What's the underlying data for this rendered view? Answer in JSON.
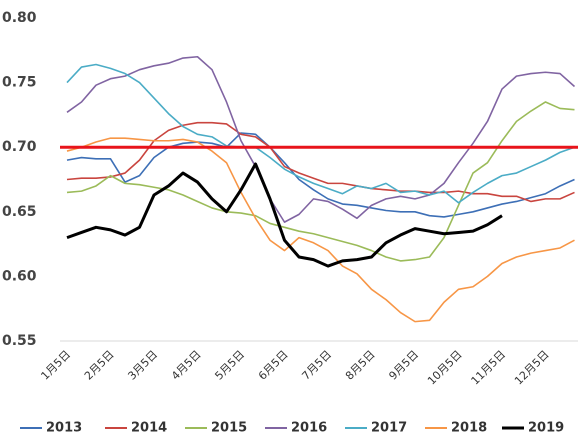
{
  "chart_data": {
    "type": "line",
    "categories": [
      "1月5日",
      null,
      null,
      "2月5日",
      null,
      null,
      "3月5日",
      null,
      null,
      "4月5日",
      null,
      null,
      "5月5日",
      null,
      null,
      "6月5日",
      null,
      null,
      "7月5日",
      null,
      null,
      "8月5日",
      null,
      null,
      "9月5日",
      null,
      null,
      "10月5日",
      null,
      null,
      "11月5日",
      null,
      null,
      "12月5日",
      null,
      null
    ],
    "ylim": [
      0.55,
      0.8
    ],
    "yticks": [
      {
        "value": 0.55,
        "label": "0.55"
      },
      {
        "value": 0.6,
        "label": "0.60"
      },
      {
        "value": 0.65,
        "label": "0.65"
      },
      {
        "value": 0.7,
        "label": "0.70"
      },
      {
        "value": 0.75,
        "label": "0.75"
      },
      {
        "value": 0.8,
        "label": "0.80"
      }
    ],
    "hline": {
      "value": 0.7,
      "color": "#e8141b"
    },
    "legend": "bottom",
    "series": [
      {
        "name": "2013",
        "color": "#3d6fb6",
        "values": [
          0.69,
          0.692,
          0.691,
          0.691,
          0.673,
          0.678,
          0.692,
          0.7,
          0.703,
          0.704,
          0.703,
          0.7,
          0.711,
          0.71,
          0.7,
          0.688,
          0.675,
          0.667,
          0.66,
          0.656,
          0.655,
          0.653,
          0.651,
          0.65,
          0.65,
          0.647,
          0.646,
          0.648,
          0.65,
          0.653,
          0.656,
          0.658,
          0.661,
          0.664,
          0.67,
          0.675
        ]
      },
      {
        "name": "2014",
        "color": "#c9453f",
        "values": [
          0.675,
          0.676,
          0.676,
          0.677,
          0.68,
          0.69,
          0.705,
          0.713,
          0.717,
          0.719,
          0.719,
          0.718,
          0.71,
          0.708,
          0.7,
          0.685,
          0.68,
          0.676,
          0.672,
          0.672,
          0.67,
          0.668,
          0.667,
          0.666,
          0.666,
          0.665,
          0.665,
          0.666,
          0.664,
          0.664,
          0.662,
          0.662,
          0.658,
          0.66,
          0.66,
          0.665
        ]
      },
      {
        "name": "2015",
        "color": "#9bbb59",
        "values": [
          0.665,
          0.666,
          0.67,
          0.678,
          0.672,
          0.671,
          0.669,
          0.667,
          0.663,
          0.658,
          0.653,
          0.65,
          0.649,
          0.647,
          0.641,
          0.638,
          0.635,
          0.633,
          0.63,
          0.627,
          0.624,
          0.62,
          0.615,
          0.612,
          0.613,
          0.615,
          0.63,
          0.655,
          0.68,
          0.688,
          0.705,
          0.72,
          0.728,
          0.735,
          0.73,
          0.729
        ]
      },
      {
        "name": "2016",
        "color": "#8064a2",
        "values": [
          0.727,
          0.735,
          0.748,
          0.753,
          0.755,
          0.76,
          0.763,
          0.765,
          0.769,
          0.77,
          0.76,
          0.735,
          0.705,
          0.685,
          0.66,
          0.642,
          0.648,
          0.66,
          0.658,
          0.652,
          0.645,
          0.655,
          0.66,
          0.662,
          0.66,
          0.663,
          0.672,
          0.688,
          0.703,
          0.72,
          0.745,
          0.755,
          0.757,
          0.758,
          0.757,
          0.747
        ]
      },
      {
        "name": "2017",
        "color": "#4bacc6",
        "values": [
          0.75,
          0.762,
          0.764,
          0.761,
          0.757,
          0.75,
          0.738,
          0.726,
          0.716,
          0.71,
          0.708,
          0.701,
          0.7,
          0.7,
          0.692,
          0.683,
          0.677,
          0.672,
          0.668,
          0.664,
          0.67,
          0.668,
          0.672,
          0.665,
          0.666,
          0.663,
          0.666,
          0.657,
          0.665,
          0.672,
          0.678,
          0.68,
          0.685,
          0.69,
          0.696,
          0.7
        ]
      },
      {
        "name": "2018",
        "color": "#f79646",
        "values": [
          0.697,
          0.7,
          0.704,
          0.707,
          0.707,
          0.706,
          0.705,
          0.705,
          0.706,
          0.704,
          0.697,
          0.688,
          0.665,
          0.645,
          0.628,
          0.62,
          0.63,
          0.626,
          0.62,
          0.608,
          0.602,
          0.59,
          0.582,
          0.572,
          0.565,
          0.566,
          0.58,
          0.59,
          0.592,
          0.6,
          0.61,
          0.615,
          0.618,
          0.62,
          0.622,
          0.628
        ]
      },
      {
        "name": "2019",
        "color": "#000000",
        "values": [
          0.63,
          0.634,
          0.638,
          0.636,
          0.632,
          0.638,
          0.663,
          0.67,
          0.68,
          0.673,
          0.66,
          0.65,
          0.667,
          0.687,
          0.66,
          0.628,
          0.615,
          0.613,
          0.608,
          0.612,
          0.613,
          0.615,
          0.626,
          0.632,
          0.637,
          0.635,
          0.633,
          0.634,
          0.635,
          0.64,
          0.647,
          null,
          null,
          null,
          null,
          null
        ]
      }
    ]
  }
}
